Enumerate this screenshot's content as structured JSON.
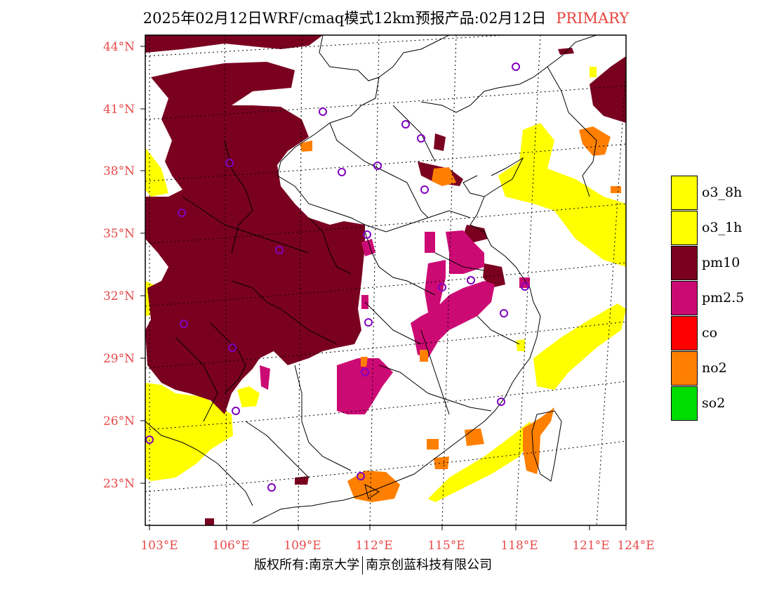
{
  "title": {
    "main": "2025年02月12日WRF/cmaq模式12km预报产品:02月12日",
    "tag": "PRIMARY"
  },
  "footer": {
    "left": "版权所有:南京大学",
    "right": "南京创蓝科技有限公司"
  },
  "map": {
    "lat_labels": [
      "44°N",
      "41°N",
      "38°N",
      "35°N",
      "32°N",
      "29°N",
      "26°N",
      "23°N"
    ],
    "lon_labels": [
      "103°E",
      "106°E",
      "109°E",
      "112°E",
      "115°E",
      "118°E",
      "121°E",
      "124°E"
    ],
    "colors": {
      "o3_8h": "#ffff00",
      "o3_1h": "#ffff00",
      "pm10": "#7a0020",
      "pm25": "#cc0a74",
      "co": "#ff0000",
      "no2": "#ff7f00",
      "so2": "#00dd00",
      "station": "#8000c0",
      "label": "#e84a4a"
    }
  },
  "legend": [
    {
      "label": "o3_8h",
      "color": "#ffff00"
    },
    {
      "label": "o3_1h",
      "color": "#ffff00"
    },
    {
      "label": "pm10",
      "color": "#7a0020"
    },
    {
      "label": "pm2.5",
      "color": "#cc0a74"
    },
    {
      "label": "co",
      "color": "#ff0000"
    },
    {
      "label": "no2",
      "color": "#ff7f00"
    },
    {
      "label": "so2",
      "color": "#00dd00"
    }
  ]
}
